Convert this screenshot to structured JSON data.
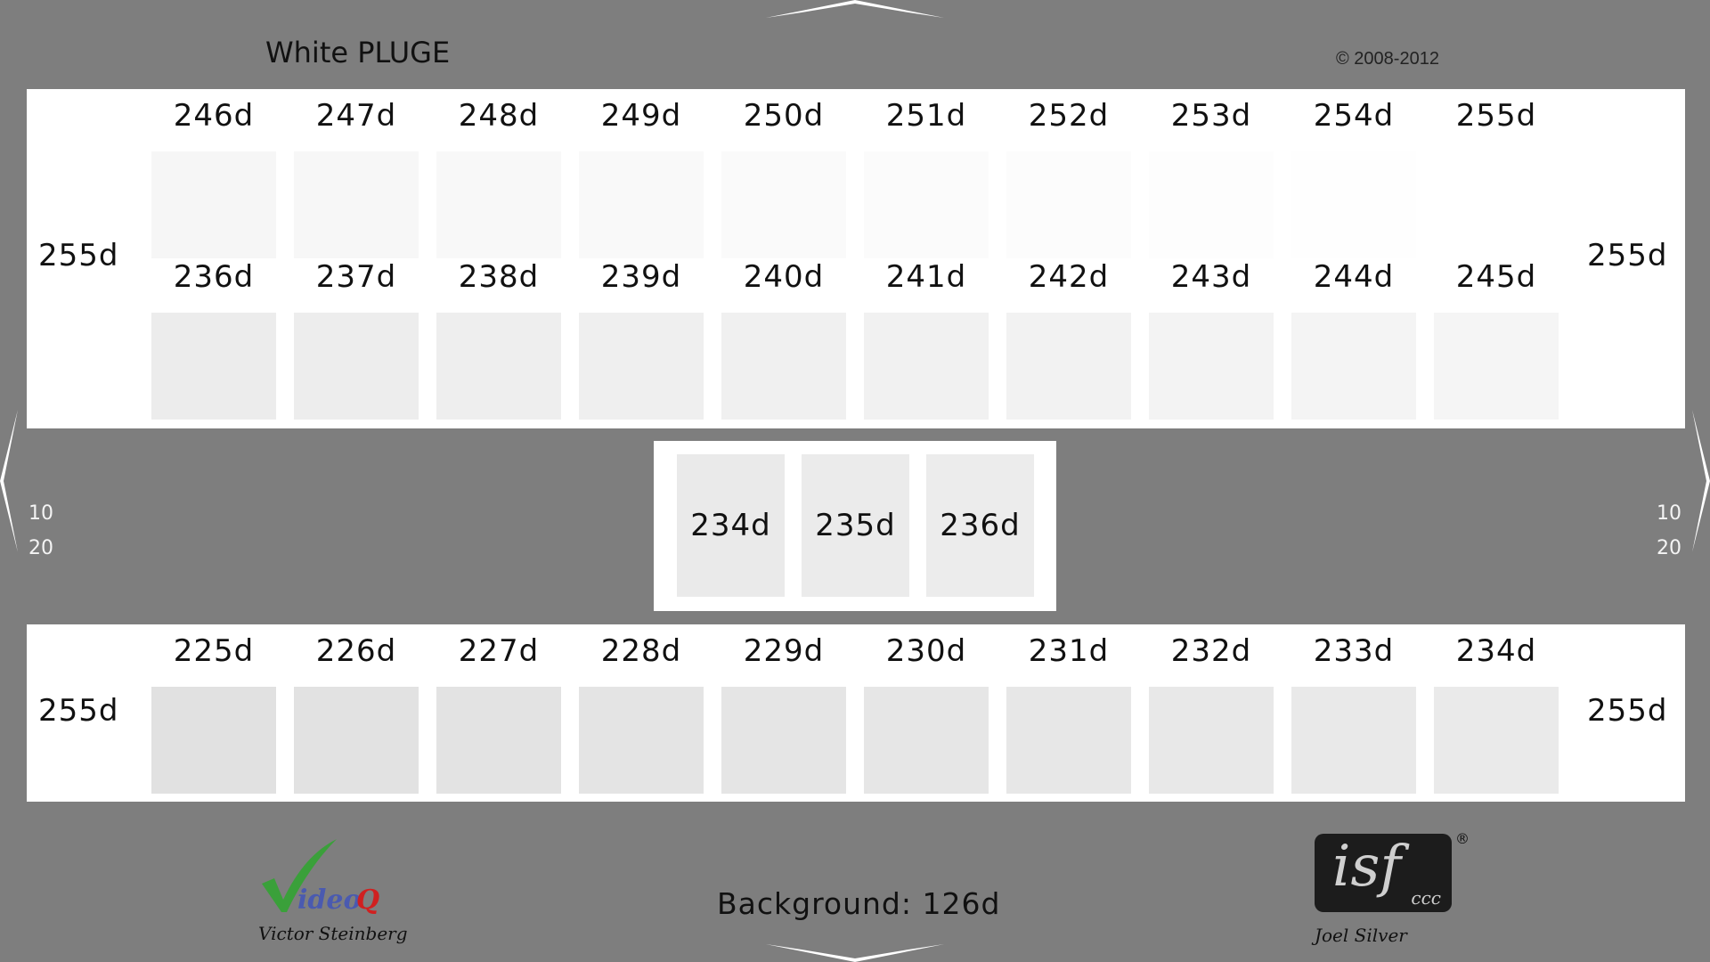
{
  "header": {
    "title": "White PLUGE",
    "copyright": "© 2008-2012"
  },
  "top_panel": {
    "left_label": "255d",
    "right_label": "255d",
    "rows": [
      {
        "cells": [
          {
            "label": "246d",
            "value": 246
          },
          {
            "label": "247d",
            "value": 247
          },
          {
            "label": "248d",
            "value": 248
          },
          {
            "label": "249d",
            "value": 249
          },
          {
            "label": "250d",
            "value": 250
          },
          {
            "label": "251d",
            "value": 251
          },
          {
            "label": "252d",
            "value": 252
          },
          {
            "label": "253d",
            "value": 253
          },
          {
            "label": "254d",
            "value": 254
          },
          {
            "label": "255d",
            "value": 255
          }
        ]
      },
      {
        "cells": [
          {
            "label": "236d",
            "value": 236
          },
          {
            "label": "237d",
            "value": 237
          },
          {
            "label": "238d",
            "value": 238
          },
          {
            "label": "239d",
            "value": 239
          },
          {
            "label": "240d",
            "value": 240
          },
          {
            "label": "241d",
            "value": 241
          },
          {
            "label": "242d",
            "value": 242
          },
          {
            "label": "243d",
            "value": 243
          },
          {
            "label": "244d",
            "value": 244
          },
          {
            "label": "245d",
            "value": 245
          }
        ]
      }
    ]
  },
  "middle_panel": {
    "cells": [
      {
        "label": "234d",
        "value": 234
      },
      {
        "label": "235d",
        "value": 235
      },
      {
        "label": "236d",
        "value": 236
      }
    ]
  },
  "bottom_panel": {
    "left_label": "255d",
    "right_label": "255d",
    "cells": [
      {
        "label": "225d",
        "value": 225
      },
      {
        "label": "226d",
        "value": 226
      },
      {
        "label": "227d",
        "value": 227
      },
      {
        "label": "228d",
        "value": 228
      },
      {
        "label": "229d",
        "value": 229
      },
      {
        "label": "230d",
        "value": 230
      },
      {
        "label": "231d",
        "value": 231
      },
      {
        "label": "232d",
        "value": 232
      },
      {
        "label": "233d",
        "value": 233
      },
      {
        "label": "234d",
        "value": 234
      }
    ]
  },
  "side_markers": {
    "upper": "10",
    "lower": "20"
  },
  "footer": {
    "background_label": "Background: 126d",
    "left_logo": "VideoQ",
    "left_signature": "Victor Steinberg",
    "right_logo": "isf",
    "right_logo_sub": "ccc",
    "right_logo_mark": "®",
    "right_signature": "Joel Silver"
  },
  "colors": {
    "background": "#7e7e7e",
    "panel": "#ffffff",
    "check_green": "#3aa03a",
    "logo_red": "#d02020",
    "logo_blue": "#4a5ab0"
  }
}
